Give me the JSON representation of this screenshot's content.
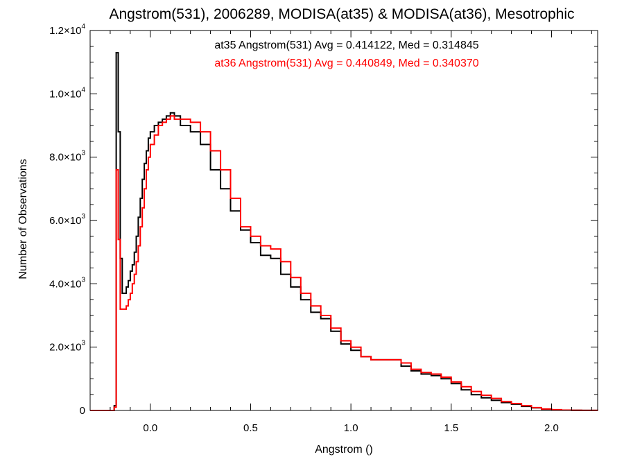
{
  "chart_data": {
    "type": "line",
    "title": "Angstrom(531), 2006289, MODISA(at35) & MODISA(at36), Mesotrophic",
    "xlabel": "Angstrom ()",
    "ylabel": "Number of Observations",
    "xlim": [
      -0.3,
      2.23
    ],
    "ylim": [
      0,
      12000
    ],
    "xticks": [
      0.0,
      0.5,
      1.0,
      1.5,
      2.0
    ],
    "xtick_labels": [
      "0.0",
      "0.5",
      "1.0",
      "1.5",
      "2.0"
    ],
    "yticks": [
      0,
      2000,
      4000,
      6000,
      8000,
      10000,
      12000
    ],
    "ytick_labels": [
      {
        "mant": "0",
        "exp": ""
      },
      {
        "mant": "2.0×10",
        "exp": "3"
      },
      {
        "mant": "4.0×10",
        "exp": "3"
      },
      {
        "mant": "6.0×10",
        "exp": "3"
      },
      {
        "mant": "8.0×10",
        "exp": "3"
      },
      {
        "mant": "1.0×10",
        "exp": "4"
      },
      {
        "mant": "1.2×10",
        "exp": "4"
      }
    ],
    "grid": false,
    "legend_placement": "top-center",
    "annotations": [
      {
        "text": "at35 Angstrom(531) Avg = 0.414122, Med = 0.314845",
        "color": "#000000"
      },
      {
        "text": "at36 Angstrom(531) Avg = 0.440849, Med = 0.340370",
        "color": "#ff0000"
      }
    ],
    "series": [
      {
        "color": "#000000",
        "x": [
          -0.3,
          -0.2,
          -0.19,
          -0.18,
          -0.17,
          -0.16,
          -0.15,
          -0.14,
          -0.13,
          -0.12,
          -0.11,
          -0.1,
          -0.09,
          -0.08,
          -0.07,
          -0.06,
          -0.05,
          -0.04,
          -0.03,
          -0.02,
          -0.01,
          0.0,
          0.02,
          0.04,
          0.06,
          0.08,
          0.1,
          0.12,
          0.15,
          0.2,
          0.25,
          0.3,
          0.35,
          0.4,
          0.45,
          0.5,
          0.55,
          0.6,
          0.65,
          0.7,
          0.75,
          0.8,
          0.85,
          0.9,
          0.95,
          1.0,
          1.05,
          1.1,
          1.15,
          1.2,
          1.25,
          1.3,
          1.35,
          1.4,
          1.45,
          1.5,
          1.55,
          1.6,
          1.65,
          1.7,
          1.75,
          1.8,
          1.85,
          1.9,
          1.95,
          2.0,
          2.05,
          2.1,
          2.15,
          2.23
        ],
        "y": [
          0,
          0,
          0,
          150,
          11300,
          8800,
          4800,
          3700,
          3700,
          3900,
          4100,
          4400,
          4600,
          5000,
          5500,
          6100,
          6700,
          7300,
          7800,
          8200,
          8600,
          8800,
          9000,
          9100,
          9200,
          9300,
          9400,
          9300,
          9000,
          8800,
          8400,
          7600,
          7000,
          6300,
          5700,
          5300,
          4900,
          4800,
          4300,
          3900,
          3500,
          3100,
          2900,
          2500,
          2100,
          1900,
          1700,
          1600,
          1600,
          1600,
          1400,
          1250,
          1150,
          1100,
          1000,
          850,
          650,
          500,
          400,
          320,
          250,
          200,
          130,
          80,
          40,
          20,
          10,
          5,
          2,
          0
        ]
      },
      {
        "color": "#ff0000",
        "x": [
          -0.3,
          -0.2,
          -0.19,
          -0.18,
          -0.17,
          -0.16,
          -0.15,
          -0.14,
          -0.13,
          -0.12,
          -0.11,
          -0.1,
          -0.09,
          -0.08,
          -0.07,
          -0.06,
          -0.05,
          -0.04,
          -0.03,
          -0.02,
          -0.01,
          0.0,
          0.02,
          0.04,
          0.06,
          0.08,
          0.1,
          0.12,
          0.15,
          0.2,
          0.25,
          0.3,
          0.35,
          0.4,
          0.45,
          0.5,
          0.55,
          0.6,
          0.65,
          0.7,
          0.75,
          0.8,
          0.85,
          0.9,
          0.95,
          1.0,
          1.05,
          1.1,
          1.15,
          1.2,
          1.25,
          1.3,
          1.35,
          1.4,
          1.45,
          1.5,
          1.55,
          1.6,
          1.65,
          1.7,
          1.75,
          1.8,
          1.85,
          1.9,
          1.95,
          2.0,
          2.05,
          2.1,
          2.15,
          2.23
        ],
        "y": [
          0,
          0,
          0,
          100,
          7600,
          5400,
          3200,
          3200,
          3200,
          3300,
          3500,
          3700,
          4000,
          4300,
          4700,
          5200,
          5800,
          6400,
          7000,
          7600,
          8000,
          8400,
          8700,
          9000,
          9100,
          9200,
          9300,
          9200,
          9200,
          9100,
          8800,
          8200,
          7600,
          6700,
          5800,
          5500,
          5200,
          5100,
          4700,
          4200,
          3700,
          3300,
          3000,
          2600,
          2200,
          2000,
          1700,
          1600,
          1600,
          1600,
          1500,
          1300,
          1200,
          1150,
          1050,
          900,
          750,
          600,
          480,
          380,
          280,
          220,
          150,
          90,
          45,
          25,
          12,
          5,
          2,
          0
        ]
      }
    ]
  }
}
